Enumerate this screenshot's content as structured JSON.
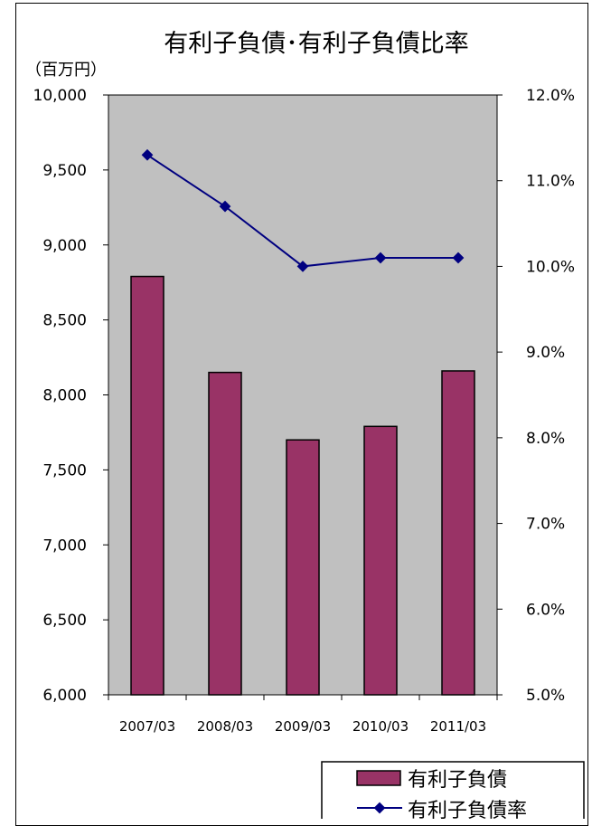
{
  "chart_data": {
    "type": "bar",
    "title": "有利子負債･有利子負債比率",
    "y_unit_label": "（百万円）",
    "categories": [
      "2007/03",
      "2008/03",
      "2009/03",
      "2010/03",
      "2011/03"
    ],
    "series": [
      {
        "name": "有利子負債",
        "type": "bar",
        "axis": "left",
        "color": "#993366",
        "values": [
          8790,
          8150,
          7700,
          7790,
          8160
        ]
      },
      {
        "name": "有利子負債率",
        "type": "line",
        "axis": "right",
        "color": "#000080",
        "marker": "diamond",
        "values": [
          11.3,
          10.7,
          10.0,
          10.1,
          10.1
        ]
      }
    ],
    "y_left": {
      "ylim": [
        6000,
        10000
      ],
      "ticks": [
        6000,
        6500,
        7000,
        7500,
        8000,
        8500,
        9000,
        9500,
        10000
      ],
      "tick_labels": [
        "6,000",
        "6,500",
        "7,000",
        "7,500",
        "8,000",
        "8,500",
        "9,000",
        "9,500",
        "10,000"
      ]
    },
    "y_right": {
      "ylim": [
        5.0,
        12.0
      ],
      "ticks": [
        5,
        6,
        7,
        8,
        9,
        10,
        11,
        12
      ],
      "tick_labels": [
        "5.0%",
        "6.0%",
        "7.0%",
        "8.0%",
        "9.0%",
        "10.0%",
        "11.0%",
        "12.0%"
      ]
    },
    "plot_background": "#c0c0c0",
    "grid": false,
    "legend_position": "bottom-right"
  }
}
